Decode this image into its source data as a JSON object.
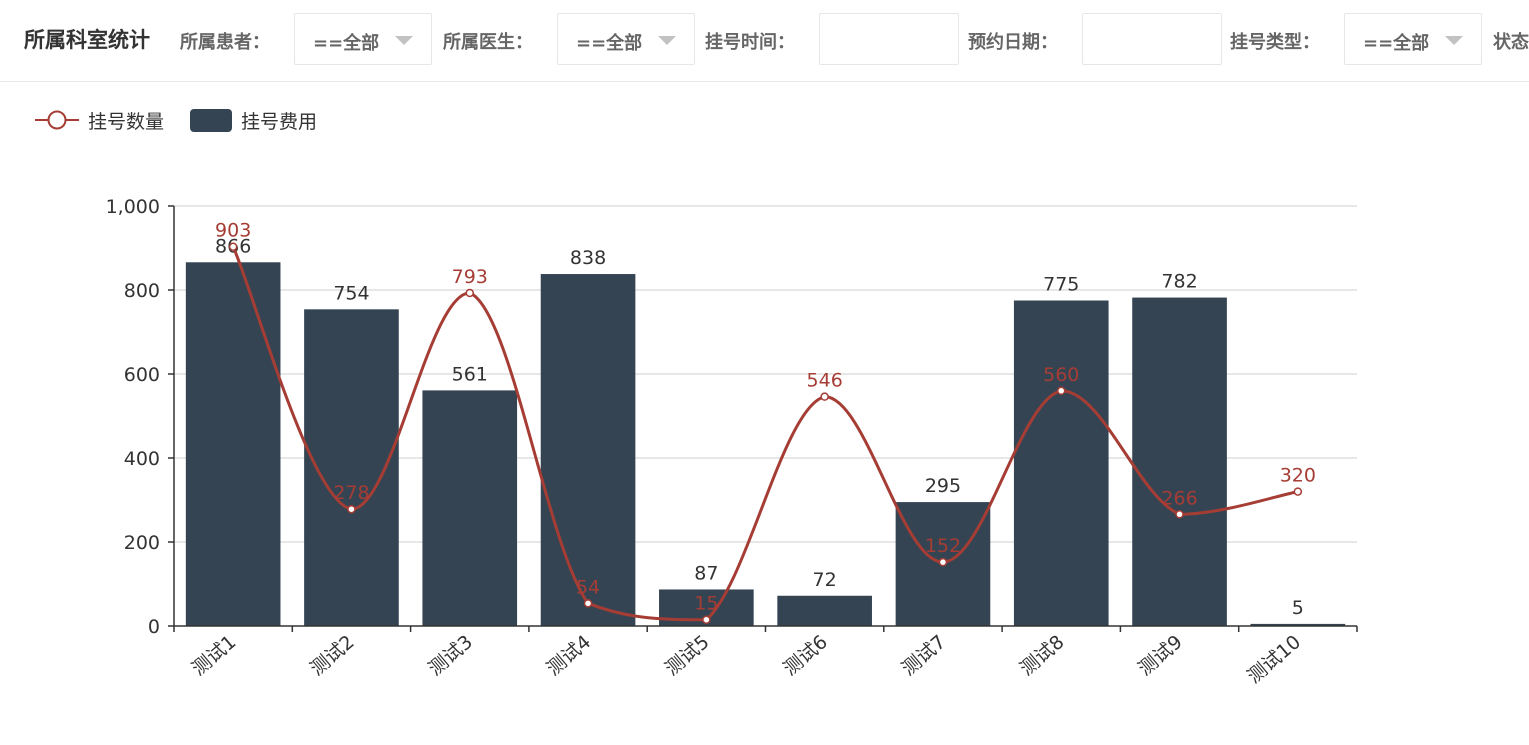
{
  "toolbar": {
    "title": "所属科室统计",
    "patient_label": "所属患者：",
    "patient_value": "==全部",
    "doctor_label": "所属医生：",
    "doctor_value": "==全部",
    "reg_time_label": "挂号时间：",
    "reg_time_value": "",
    "appt_date_label": "预约日期：",
    "appt_date_value": "",
    "reg_type_label": "挂号类型：",
    "reg_type_value": "==全部",
    "status_label": "状态"
  },
  "chart_data": {
    "type": "bar",
    "categories": [
      "测试1",
      "测试2",
      "测试3",
      "测试4",
      "测试5",
      "测试6",
      "测试7",
      "测试8",
      "测试9",
      "测试10"
    ],
    "series": [
      {
        "name": "挂号数量",
        "type": "line",
        "smooth": true,
        "color": "#a63d35",
        "values": [
          903,
          278,
          793,
          54,
          15,
          546,
          152,
          560,
          266,
          320
        ]
      },
      {
        "name": "挂号费用",
        "type": "bar",
        "color": "#344453",
        "values": [
          866,
          754,
          561,
          838,
          87,
          72,
          295,
          775,
          782,
          5
        ]
      }
    ],
    "yticks": [
      "0",
      "200",
      "400",
      "600",
      "800",
      "1,000"
    ],
    "ylim": [
      0,
      1000
    ],
    "grid": true,
    "legend_position": "top-left"
  }
}
